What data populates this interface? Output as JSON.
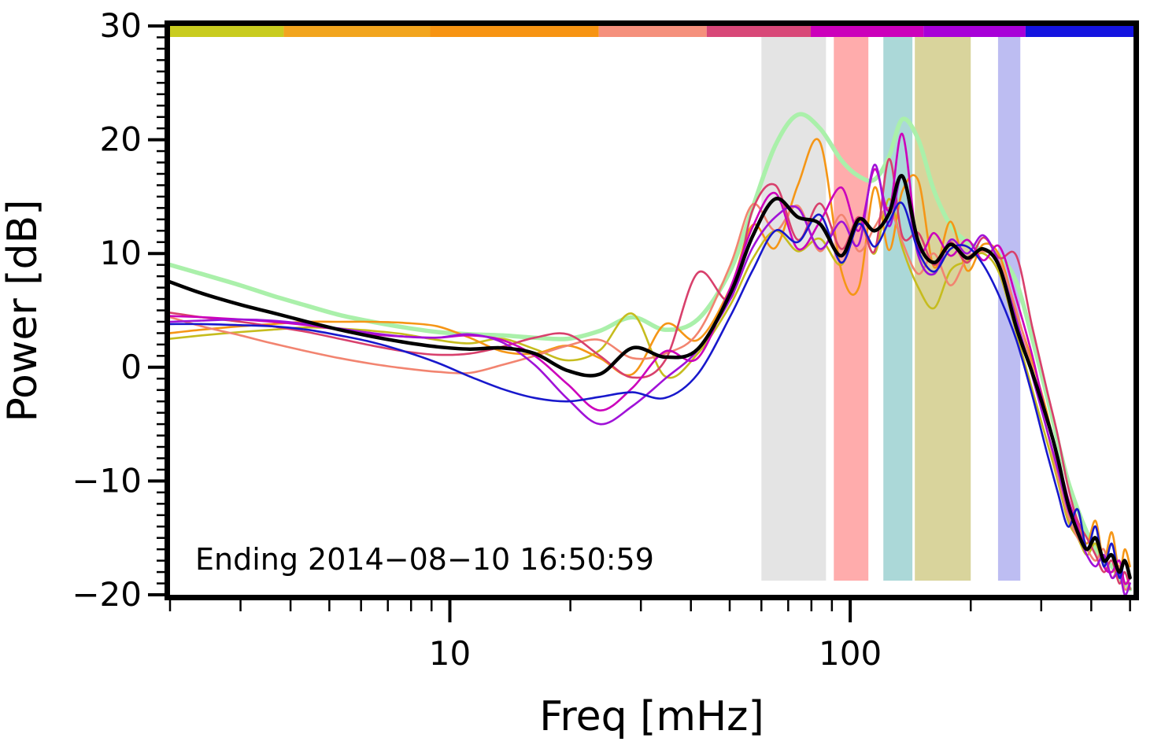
{
  "chart_data": {
    "type": "line",
    "title": "",
    "xlabel": "Freq [mHz]",
    "ylabel": "Power [dB]",
    "annotation": "Ending 2014−08−10 16:50:59",
    "x_scale": "log",
    "xlim": [
      2,
      510
    ],
    "ylim": [
      -20,
      30
    ],
    "grid": false,
    "legend": "none",
    "x_major_ticks": [
      10,
      100
    ],
    "x_major_tick_labels": [
      "10",
      "100"
    ],
    "x_minor_ticks": [
      2,
      3,
      4,
      5,
      6,
      7,
      8,
      9,
      20,
      30,
      40,
      50,
      60,
      70,
      80,
      90,
      200,
      300,
      400,
      500
    ],
    "y_major_ticks": [
      30,
      20,
      10,
      0,
      -10,
      -20
    ],
    "y_major_tick_labels": [
      "30",
      "20",
      "10",
      "0",
      "−10",
      "−20"
    ],
    "y_minor_tick_step": 1,
    "x": [
      2.0,
      2.4,
      3.0,
      3.6,
      4.4,
      5.3,
      6.4,
      7.7,
      9.3,
      11.2,
      13.5,
      16.3,
      19.7,
      23.7,
      28.6,
      34.5,
      41.6,
      50.2,
      57,
      65,
      74,
      84,
      95,
      105,
      115,
      125,
      135,
      148,
      162,
      178,
      196,
      215,
      236,
      260,
      285,
      310,
      330,
      350,
      370,
      390,
      410,
      430,
      450,
      470,
      485,
      500
    ],
    "series": [
      {
        "name": "series-smooth-green",
        "color": "#aaf0aa",
        "width": 5.5,
        "values": [
          9.0,
          8.2,
          7.2,
          6.3,
          5.4,
          4.6,
          4.0,
          3.5,
          3.1,
          2.9,
          2.8,
          2.6,
          2.5,
          3.2,
          4.4,
          3.3,
          4.2,
          8.5,
          14,
          19.5,
          22.2,
          21.0,
          18.2,
          16.8,
          16.5,
          18.5,
          21.8,
          20.0,
          15.5,
          12.5,
          11.0,
          10.3,
          9.8,
          7.5,
          2.5,
          -2.5,
          -6.5,
          -10,
          -12.5,
          -14.5,
          -16,
          -17,
          -17.5,
          -18.5,
          -19,
          -19.5
        ]
      },
      {
        "name": "series-yellow",
        "color": "#c6bc1e",
        "width": 2.6,
        "values": [
          2.5,
          2.8,
          3.1,
          3.3,
          3.5,
          3.4,
          3.2,
          2.9,
          2.4,
          2.1,
          2.5,
          1.6,
          0.6,
          1.5,
          4.7,
          -0.8,
          1.2,
          5.5,
          9.5,
          12.0,
          10.2,
          11.3,
          9.0,
          12.8,
          10.0,
          14.8,
          10.5,
          7.0,
          5.2,
          8.5,
          9.3,
          10.0,
          8.2,
          3.0,
          -2.0,
          -6.5,
          -10,
          -13.5,
          -15,
          -16.5,
          -15.5,
          -17.5,
          -18,
          -17.5,
          -19,
          -18.5
        ]
      },
      {
        "name": "series-orange",
        "color": "#f59616",
        "width": 2.6,
        "values": [
          3.0,
          3.3,
          3.6,
          3.8,
          4.0,
          4.0,
          4.0,
          3.9,
          3.6,
          2.6,
          1.4,
          1.2,
          1.9,
          0.8,
          -0.6,
          3.8,
          2.4,
          7.0,
          12.5,
          10.5,
          16.0,
          19.8,
          8.5,
          7.0,
          15.8,
          10.3,
          15.5,
          16.4,
          8.8,
          12.8,
          8.5,
          10.8,
          9.8,
          4.8,
          0.5,
          -4,
          -8.5,
          -12,
          -13.5,
          -15.5,
          -13.5,
          -17,
          -14.5,
          -18,
          -16,
          -17.5
        ]
      },
      {
        "name": "series-salmon",
        "color": "#f28470",
        "width": 2.6,
        "values": [
          4.4,
          3.6,
          2.8,
          2.1,
          1.4,
          0.8,
          0.3,
          -0.1,
          -0.4,
          -0.5,
          0.2,
          1.0,
          1.9,
          2.4,
          0.8,
          1.2,
          3.0,
          9.0,
          14.3,
          12.0,
          14.2,
          10.2,
          13.4,
          10.2,
          12.3,
          14.0,
          11.0,
          8.2,
          10.0,
          7.2,
          9.6,
          10.2,
          9.2,
          5.0,
          -0.2,
          -5.5,
          -9.5,
          -13,
          -15,
          -16,
          -17,
          -16,
          -18.5,
          -17.5,
          -19.5,
          -19
        ]
      },
      {
        "name": "series-crimson",
        "color": "#d8406c",
        "width": 2.6,
        "values": [
          4.8,
          4.4,
          4.0,
          3.6,
          3.1,
          2.5,
          1.9,
          1.4,
          1.1,
          1.2,
          1.8,
          2.6,
          2.9,
          1.0,
          -0.9,
          0.6,
          8.3,
          6.0,
          13.8,
          16.0,
          11.2,
          14.4,
          10.4,
          13.2,
          10.2,
          18.3,
          11.5,
          11.8,
          9.0,
          11.0,
          9.2,
          11.4,
          9.6,
          9.8,
          3.5,
          -2,
          -6,
          -10.5,
          -13.5,
          -15,
          -16.5,
          -18,
          -17,
          -19,
          -18,
          -19.5
        ]
      },
      {
        "name": "series-magenta",
        "color": "#cc00bb",
        "width": 2.6,
        "values": [
          4.5,
          4.4,
          4.2,
          4.0,
          3.7,
          3.3,
          2.9,
          2.7,
          2.6,
          2.8,
          2.4,
          1.0,
          -1.5,
          -3.8,
          -1.8,
          1.4,
          0.8,
          7.0,
          12.3,
          15.3,
          10.4,
          12.8,
          15.8,
          12.0,
          17.4,
          13.8,
          20.5,
          10.5,
          11.8,
          9.8,
          11.2,
          9.4,
          10.6,
          6.0,
          1.0,
          -4.5,
          -8,
          -11.5,
          -14,
          -16,
          -15,
          -17.5,
          -18,
          -17,
          -19,
          -18.5
        ]
      },
      {
        "name": "series-purple",
        "color": "#a012d8",
        "width": 2.6,
        "values": [
          4.0,
          4.1,
          4.2,
          4.1,
          3.8,
          3.4,
          3.0,
          2.7,
          2.6,
          2.9,
          2.2,
          0.2,
          -2.8,
          -5.0,
          -3.4,
          -1.0,
          1.5,
          6.0,
          10.5,
          13.2,
          14.0,
          10.4,
          12.8,
          10.8,
          17.8,
          12.4,
          16.8,
          9.8,
          8.2,
          11.2,
          10.0,
          11.6,
          9.0,
          4.2,
          -0.8,
          -5.5,
          -9,
          -12.5,
          -14.5,
          -16.5,
          -17.5,
          -16.5,
          -18.5,
          -18,
          -20,
          -19
        ]
      },
      {
        "name": "series-blue",
        "color": "#1818cc",
        "width": 2.6,
        "values": [
          3.8,
          3.8,
          3.7,
          3.6,
          3.3,
          2.8,
          2.2,
          1.4,
          0.4,
          -0.8,
          -1.9,
          -2.7,
          -3.0,
          -2.6,
          -2.2,
          -2.7,
          -0.6,
          4.5,
          8.5,
          12.0,
          11.0,
          13.4,
          9.2,
          12.6,
          10.6,
          12.8,
          14.4,
          10.2,
          8.4,
          10.4,
          10.6,
          9.0,
          6.2,
          2.4,
          -2.5,
          -7.5,
          -11,
          -14,
          -12.5,
          -16,
          -14,
          -17.5,
          -15.5,
          -18.5,
          -17,
          -18.5
        ]
      },
      {
        "name": "series-mean-black",
        "color": "#000000",
        "width": 4.5,
        "values": [
          7.5,
          6.5,
          5.5,
          4.8,
          4.0,
          3.3,
          2.7,
          2.2,
          1.8,
          1.6,
          1.7,
          1.2,
          -0.3,
          -0.6,
          1.7,
          0.9,
          1.6,
          6.5,
          11.5,
          14.8,
          13.2,
          12.6,
          9.8,
          13.0,
          12.0,
          13.5,
          16.8,
          11.0,
          9.2,
          10.8,
          9.6,
          10.4,
          8.8,
          3.5,
          -0.5,
          -4.5,
          -8,
          -12,
          -14.5,
          -16,
          -15,
          -17,
          -16.5,
          -18,
          -17,
          -18.5
        ]
      }
    ],
    "bands": [
      {
        "name": "band-gray",
        "color": "#e4e4e4",
        "x0": 60,
        "x1": 87
      },
      {
        "name": "band-pink",
        "color": "#ffacac",
        "x0": 91,
        "x1": 111
      },
      {
        "name": "band-teal",
        "color": "#abd8d8",
        "x0": 121,
        "x1": 143
      },
      {
        "name": "band-olive",
        "color": "#d9d49c",
        "x0": 145,
        "x1": 200
      },
      {
        "name": "band-lavender",
        "color": "#bdbdf2",
        "x0": 234,
        "x1": 266
      }
    ],
    "top_strip": {
      "segments": [
        {
          "color": "#c9cc1f",
          "f0": 0.0,
          "f1": 0.118
        },
        {
          "color": "#f2a51e",
          "f0": 0.118,
          "f1": 0.27
        },
        {
          "color": "#f79412",
          "f0": 0.27,
          "f1": 0.445
        },
        {
          "color": "#f5907c",
          "f0": 0.445,
          "f1": 0.557
        },
        {
          "color": "#d84878",
          "f0": 0.557,
          "f1": 0.665
        },
        {
          "color": "#cc00bb",
          "f0": 0.665,
          "f1": 0.782
        },
        {
          "color": "#a800d8",
          "f0": 0.782,
          "f1": 0.888
        },
        {
          "color": "#1414e0",
          "f0": 0.888,
          "f1": 1.0
        }
      ]
    }
  }
}
